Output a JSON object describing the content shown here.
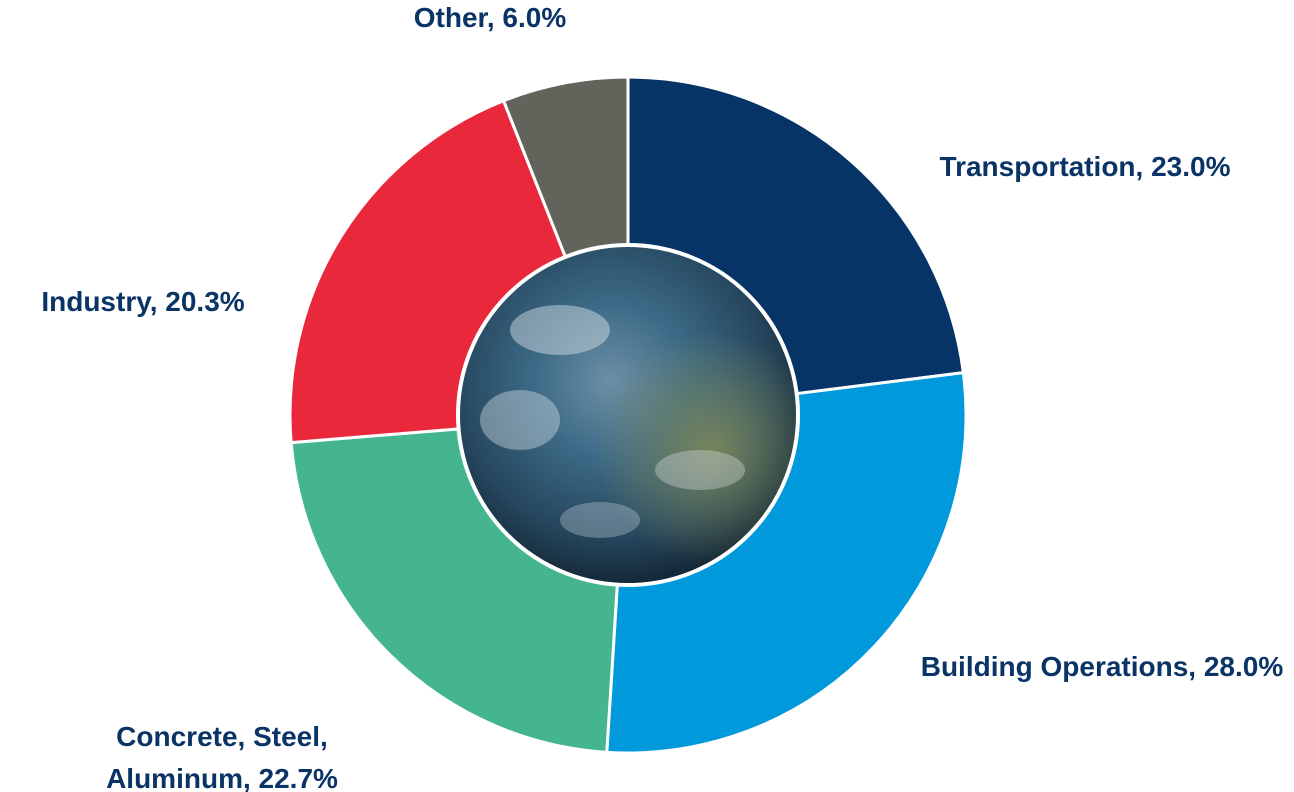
{
  "chart_data": {
    "type": "donut",
    "values": [
      23.0,
      28.0,
      22.7,
      20.3,
      6.0
    ],
    "value_labels": [
      "Transportation, 23.0%",
      "Building Operations, 28.0%",
      "Concrete, Steel, Aluminum, 22.7%",
      "Industry, 20.3%",
      "Other, 6.0%"
    ],
    "colors": [
      "#073467",
      "#0099dc",
      "#44b58f",
      "#e9283c",
      "#62635a"
    ]
  }
}
